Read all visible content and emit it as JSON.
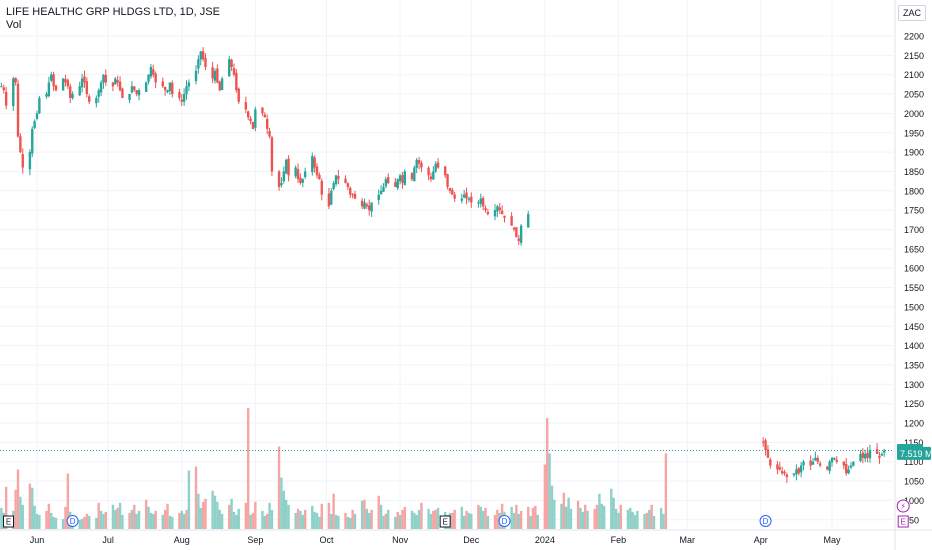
{
  "header": {
    "symbol": "LIFE HEALTHC GRP HLDGS LTD, 1D, JSE",
    "volume_label": "Vol"
  },
  "currency_button": "ZAC",
  "colors": {
    "up": "#26a69a",
    "down": "#ef5350",
    "vol_up": "#8fd1c9",
    "vol_down": "#f5a5a3",
    "grid": "#f0f3fa",
    "axis_text": "#131722",
    "price_line": "#26a69a",
    "dividend": "#2962ff",
    "future_event": "#9c27b0"
  },
  "chart_data": {
    "type": "candlestick",
    "title": "LIFE HEALTHC GRP HLDGS LTD, 1D, JSE",
    "y_axis": {
      "min": 900,
      "max": 2250,
      "ticks": [
        950,
        1000,
        1050,
        1100,
        1150,
        1200,
        1250,
        1300,
        1350,
        1400,
        1450,
        1500,
        1550,
        1600,
        1650,
        1700,
        1750,
        1800,
        1850,
        1900,
        1950,
        2000,
        2050,
        2100,
        2150,
        2200
      ],
      "tick_labels": [
        "950",
        "1000",
        "1050",
        "1100",
        "1150",
        "1200",
        "1250",
        "1300",
        "1350",
        "1400",
        "1450",
        "1500",
        "1550",
        "1600",
        "1650",
        "1700",
        "1750",
        "1800",
        "1850",
        "1900",
        "1950",
        "2000",
        "2050",
        "2100",
        "2150",
        "2200"
      ]
    },
    "x_axis": {
      "labels": [
        "Jun",
        "Jul",
        "Aug",
        "Sep",
        "Oct",
        "Nov",
        "Dec",
        "2024",
        "Feb",
        "Mar",
        "Apr",
        "May"
      ],
      "label_dates": [
        "2023-06-01",
        "2023-07-01",
        "2023-08-01",
        "2023-09-01",
        "2023-10-01",
        "2023-11-01",
        "2023-12-01",
        "2024-01-01",
        "2024-02-01",
        "2024-03-01",
        "2024-04-01",
        "2024-05-01"
      ],
      "start_date": "2023-05-17",
      "end_date": "2024-05-31"
    },
    "series": [
      {
        "name": "Price",
        "segments": [
          {
            "start": "2023-05-17",
            "end": "2024-03-28",
            "closes": [
              2070,
              2060,
              2020,
              2090,
              2080,
              1940,
              1900,
              1860,
              1900,
              1960,
              1980,
              2000,
              2040,
              2050,
              2080,
              2100,
              2070,
              2060,
              2090,
              2080,
              2070,
              2040,
              2050,
              2070,
              2090,
              2080,
              2050,
              2030,
              2040,
              2060,
              2080,
              2100,
              2080,
              2070,
              2090,
              2080,
              2060,
              2040,
              2050,
              2070,
              2060,
              2050,
              2060,
              2080,
              2100,
              2120,
              2100,
              2080,
              2070,
              2060,
              2060,
              2080,
              2050,
              2040,
              2030,
              2050,
              2070,
              2080,
              2110,
              2140,
              2160,
              2140,
              2120,
              2090,
              2110,
              2080,
              2060,
              2090,
              2140,
              2120,
              2100,
              2060,
              2030,
              2010,
              1990,
              1980,
              1960,
              2010,
              2000,
              1990,
              1960,
              1940,
              1850,
              1810,
              1820,
              1850,
              1880,
              1840,
              1860,
              1830,
              1820,
              1830,
              1850,
              1890,
              1860,
              1840,
              1830,
              1790,
              1760,
              1800,
              1820,
              1840,
              1830,
              1820,
              1810,
              1790,
              1790,
              1780,
              1760,
              1770,
              1760,
              1750,
              1770,
              1790,
              1800,
              1810,
              1830,
              1820,
              1810,
              1830,
              1840,
              1820,
              1850,
              1830,
              1860,
              1880,
              1870,
              1860,
              1840,
              1830,
              1850,
              1870,
              1860,
              1840,
              1810,
              1800,
              1790,
              1780,
              1780,
              1790,
              1780,
              1780,
              1770,
              1770,
              1780,
              1760,
              1750,
              1740,
              1750,
              1760,
              1750,
              1740,
              1730,
              1710,
              1700,
              1680,
              1670,
              1710,
              1740
            ]
          },
          {
            "start": "2024-04-02",
            "end": "2024-05-31",
            "closes": [
              1150,
              1130,
              1110,
              1090,
              1080,
              1080,
              1070,
              1070,
              1060,
              1070,
              1080,
              1070,
              1090,
              1100,
              1090,
              1100,
              1110,
              1100,
              1090,
              1080,
              1100,
              1110,
              1110,
              1100,
              1090,
              1070,
              1080,
              1090,
              1100,
              1120,
              1110,
              1120,
              1110,
              1130,
              1120,
              1110,
              1120,
              1129
            ]
          }
        ]
      },
      {
        "name": "Vol",
        "unit": "M",
        "scale_top_value": 13.0,
        "values": [
          2.1,
          1.6,
          4.2,
          1.8,
          3.9,
          5.9,
          3.2,
          2.4,
          4.5,
          4.1,
          2.3,
          1.5,
          1.4,
          1.8,
          2.5,
          1.6,
          1.2,
          1.1,
          1.0,
          2.2,
          5.5,
          1.7,
          1.3,
          0.9,
          1.0,
          1.2,
          1.5,
          1.3,
          1.1,
          2.6,
          1.8,
          1.5,
          1.7,
          2.4,
          1.9,
          2.1,
          2.6,
          1.4,
          1.6,
          1.9,
          2.4,
          1.5,
          1.8,
          2.9,
          2.2,
          1.6,
          1.5,
          1.8,
          1.4,
          1.9,
          2.5,
          1.3,
          1.2,
          1.6,
          1.8,
          1.5,
          1.9,
          5.8,
          6.2,
          3.5,
          2.1,
          2.7,
          3.0,
          3.8,
          3.3,
          2.7,
          1.9,
          1.5,
          2.4,
          3.0,
          1.7,
          1.4,
          2.0,
          2.6,
          12.0,
          1.4,
          1.6,
          2.7,
          1.8,
          1.3,
          1.5,
          2.6,
          1.9,
          8.2,
          5.1,
          3.8,
          2.9,
          2.4,
          1.6,
          2.0,
          1.8,
          1.4,
          1.9,
          2.3,
          1.7,
          1.6,
          1.2,
          2.5,
          2.6,
          1.5,
          3.5,
          1.4,
          1.3,
          1.6,
          1.2,
          1.1,
          1.9,
          1.5,
          2.8,
          2.9,
          2.0,
          1.6,
          1.9,
          3.3,
          2.4,
          1.3,
          1.5,
          1.9,
          1.2,
          1.7,
          1.4,
          1.9,
          2.2,
          1.8,
          1.6,
          1.4,
          1.9,
          2.6,
          2.0,
          1.5,
          1.8,
          1.9,
          2.1,
          1.7,
          1.4,
          1.6,
          1.6,
          1.9,
          2.2,
          1.3,
          1.8,
          1.6,
          1.5,
          2.4,
          2.2,
          1.8,
          2.1,
          1.3,
          1.4,
          1.9,
          1.6,
          2.5,
          1.7,
          2.2,
          1.6,
          2.4,
          1.5,
          1.8,
          2.2,
          1.3,
          2.1,
          2.3,
          1.4,
          6.4,
          11.0,
          7.5,
          4.3,
          2.9,
          2.5,
          3.6,
          2.2,
          3.1,
          2.0,
          2.8,
          2.1,
          1.7,
          2.4,
          1.8,
          2.0,
          2.4,
          3.5,
          2.5,
          2.3,
          4.0,
          3.1,
          2.0,
          1.6,
          2.4,
          1.9,
          2.1,
          1.7,
          1.4,
          1.8,
          1.5,
          1.6,
          1.9,
          2.4,
          1.3,
          2.1,
          1.5,
          7.5
        ],
        "last_value_label": "7.519 M"
      }
    ],
    "last_price": 1129,
    "last_price_label": "1129",
    "events": [
      {
        "type": "earnings",
        "glyph": "E",
        "date": "2023-05-20"
      },
      {
        "type": "dividend",
        "glyph": "D",
        "date": "2023-06-16"
      },
      {
        "type": "earnings",
        "glyph": "E",
        "date": "2023-11-20"
      },
      {
        "type": "dividend",
        "glyph": "D",
        "date": "2023-12-15"
      },
      {
        "type": "dividend",
        "glyph": "D",
        "date": "2024-04-03"
      },
      {
        "type": "split",
        "glyph": "⚡",
        "date": "2024-05-31"
      },
      {
        "type": "earnings",
        "glyph": "E",
        "date": "2024-05-31"
      }
    ],
    "grid": true,
    "legend_placement": "top-left"
  }
}
